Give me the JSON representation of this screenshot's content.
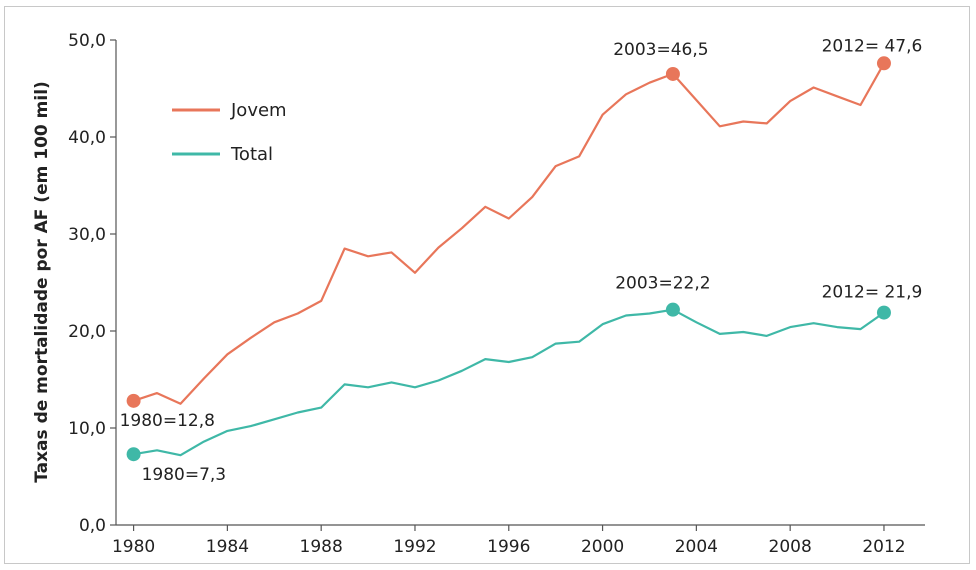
{
  "chart_data": {
    "type": "line",
    "title": "",
    "xlabel": "",
    "ylabel": "Taxas de mortalidade por AF (em 100 mil)",
    "xlim": [
      1979.25,
      2013.75
    ],
    "ylim": [
      0,
      50
    ],
    "yticks": [
      "0,0",
      "10,0",
      "20,0",
      "30,0",
      "40,0",
      "50,0"
    ],
    "ytick_values": [
      0,
      10,
      20,
      30,
      40,
      50
    ],
    "xticks": [
      "1980",
      "1984",
      "1988",
      "1992",
      "1996",
      "2000",
      "2004",
      "2008",
      "2012"
    ],
    "xtick_values": [
      1980,
      1984,
      1988,
      1992,
      1996,
      2000,
      2004,
      2008,
      2012
    ],
    "legend_position": "top-left",
    "colors": {
      "jovem": "#e8765a",
      "total": "#3fb8a7"
    },
    "x": [
      1980,
      1981,
      1982,
      1983,
      1984,
      1985,
      1986,
      1987,
      1988,
      1989,
      1990,
      1991,
      1992,
      1993,
      1994,
      1995,
      1996,
      1997,
      1998,
      1999,
      2000,
      2001,
      2002,
      2003,
      2004,
      2005,
      2006,
      2007,
      2008,
      2009,
      2010,
      2011,
      2012
    ],
    "series": [
      {
        "name": "Jovem",
        "values": [
          12.8,
          13.6,
          12.5,
          15.1,
          17.6,
          19.3,
          20.9,
          21.8,
          23.1,
          28.5,
          27.7,
          28.1,
          26.0,
          28.6,
          30.6,
          32.8,
          31.6,
          33.8,
          37.0,
          38.0,
          42.3,
          44.4,
          45.6,
          46.5,
          43.8,
          41.1,
          41.6,
          41.4,
          43.7,
          45.1,
          44.2,
          43.3,
          47.6
        ]
      },
      {
        "name": "Total",
        "values": [
          7.3,
          7.7,
          7.2,
          8.6,
          9.7,
          10.2,
          10.9,
          11.6,
          12.1,
          14.5,
          14.2,
          14.7,
          14.2,
          14.9,
          15.9,
          17.1,
          16.8,
          17.3,
          18.7,
          18.9,
          20.7,
          21.6,
          21.8,
          22.2,
          20.9,
          19.7,
          19.9,
          19.5,
          20.4,
          20.8,
          20.4,
          20.2,
          21.9
        ]
      }
    ],
    "annotations": [
      {
        "id": "jovem-1980",
        "text": "1980=12,8",
        "x": 1980,
        "y": 12.8,
        "series": "jovem",
        "anchor": "below"
      },
      {
        "id": "jovem-2003",
        "text": "2003=46,5",
        "x": 2003,
        "y": 46.5,
        "series": "jovem",
        "anchor": "above"
      },
      {
        "id": "jovem-2012",
        "text": "2012= 47,6",
        "x": 2012,
        "y": 47.6,
        "series": "jovem",
        "anchor": "above"
      },
      {
        "id": "total-1980",
        "text": "1980=7,3",
        "x": 1980,
        "y": 7.3,
        "series": "total",
        "anchor": "below"
      },
      {
        "id": "total-2003",
        "text": "2003=22,2",
        "x": 2003,
        "y": 22.2,
        "series": "total",
        "anchor": "above"
      },
      {
        "id": "total-2012",
        "text": "2012= 21,9",
        "x": 2012,
        "y": 21.9,
        "series": "total",
        "anchor": "above"
      }
    ]
  }
}
